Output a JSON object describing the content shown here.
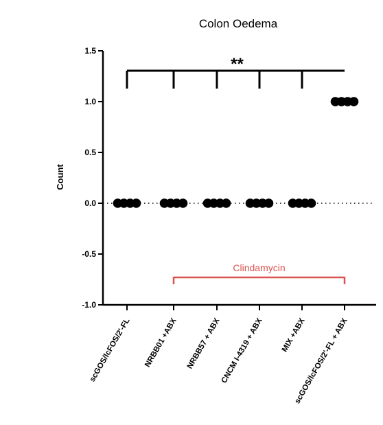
{
  "chart_data": {
    "type": "scatter",
    "title": "Colon Oedema",
    "xlabel": "",
    "ylabel": "Count",
    "ylim": [
      -1.0,
      1.5
    ],
    "yticks": [
      "1.5",
      "1.0",
      "0.5",
      "0.0",
      "-0.5",
      "-1.0"
    ],
    "ytick_values": [
      1.5,
      1.0,
      0.5,
      0.0,
      -0.5,
      -1.0
    ],
    "reference_line": 0,
    "grid": false,
    "categories": [
      "scGOS/lcFOS/2'-FL",
      "NRBB01 +ABX",
      "NRBB57 + ABX",
      "CNCM I-4319 + ABX",
      "MIX +ABX",
      "scGOS/lcFOS/2'-FL + ABX"
    ],
    "series": [
      {
        "points": [
          [
            0,
            0,
            0,
            0
          ],
          [
            0,
            0,
            0,
            0
          ],
          [
            0,
            0,
            0,
            0
          ],
          [
            0,
            0,
            0,
            0
          ],
          [
            0,
            0,
            0,
            0
          ],
          [
            1,
            1,
            1,
            1
          ]
        ]
      }
    ],
    "significance": {
      "label": "**",
      "from_category": 0,
      "to_category": 5
    },
    "group_bracket": {
      "label": "Clindamycin",
      "from_category": 1,
      "to_category": 5,
      "color": "#d9534f"
    }
  }
}
